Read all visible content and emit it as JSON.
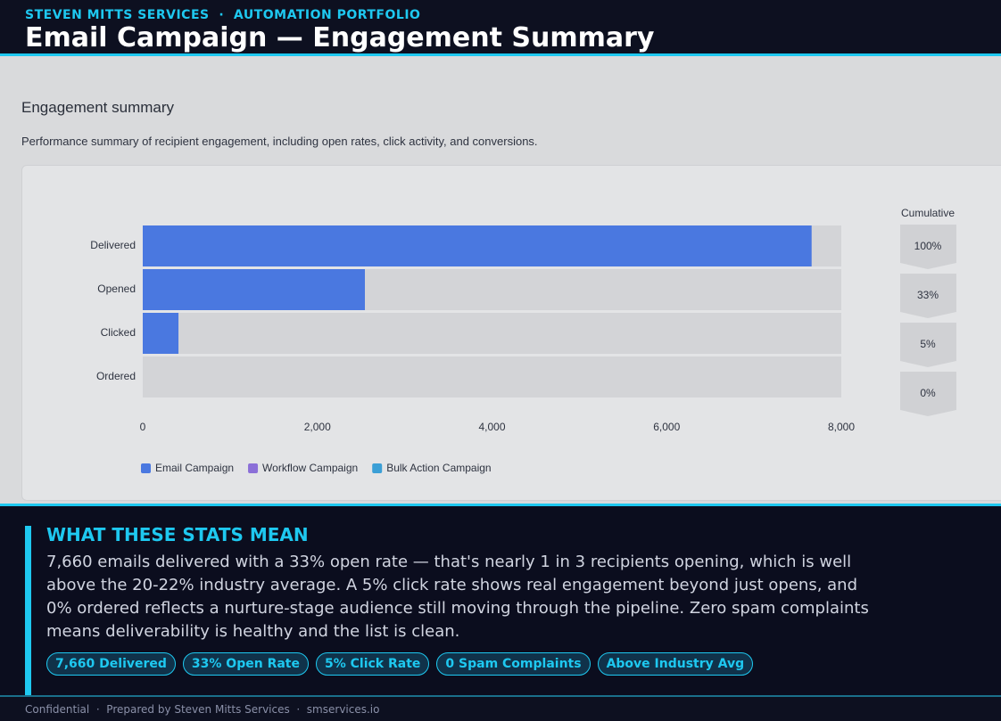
{
  "header": {
    "kicker": "STEVEN MITTS SERVICES  ·  AUTOMATION PORTFOLIO",
    "title": "Email Campaign — Engagement Summary"
  },
  "section": {
    "title": "Engagement summary",
    "description": "Performance summary of recipient engagement, including open rates, click activity, and conversions."
  },
  "chart_data": {
    "type": "bar",
    "orientation": "horizontal",
    "stacked": true,
    "categories": [
      "Delivered",
      "Opened",
      "Clicked",
      "Ordered"
    ],
    "series": [
      {
        "name": "Email Campaign",
        "color": "#4a78e0",
        "values": [
          7660,
          2544,
          409,
          0
        ]
      },
      {
        "name": "Workflow Campaign",
        "color": "#8b6fd8",
        "values": [
          0,
          0,
          0,
          0
        ]
      },
      {
        "name": "Bulk Action Campaign",
        "color": "#3b9fd6",
        "values": [
          0,
          0,
          0,
          0
        ]
      }
    ],
    "xlim": [
      0,
      8000
    ],
    "xticks": [
      0,
      {
        "value": 2000,
        "label": "2,000"
      },
      {
        "value": 4000,
        "label": "4,000"
      },
      {
        "value": 6000,
        "label": "6,000"
      },
      {
        "value": 8000,
        "label": "8,000"
      }
    ],
    "cumulative": {
      "title": "Cumulative",
      "values": [
        100,
        33,
        5,
        0
      ],
      "value_labels": [
        "100%",
        "33%",
        "5%",
        "0%"
      ]
    },
    "legend": "bottom-left"
  },
  "explanation": {
    "title": "WHAT THESE STATS MEAN",
    "text": "7,660 emails delivered with a 33% open rate — that's nearly 1 in 3 recipients opening, which is well above the 20-22% industry average. A 5% click rate shows real engagement beyond just opens, and 0% ordered reflects a nurture-stage audience still moving through the pipeline. Zero spam complaints means deliverability is healthy and the list is clean.",
    "pills": [
      "7,660 Delivered",
      "33% Open Rate",
      "5% Click Rate",
      "0 Spam Complaints",
      "Above Industry Avg"
    ]
  },
  "footer": "Confidential  ·  Prepared by Steven Mitts Services  ·  smservices.io"
}
